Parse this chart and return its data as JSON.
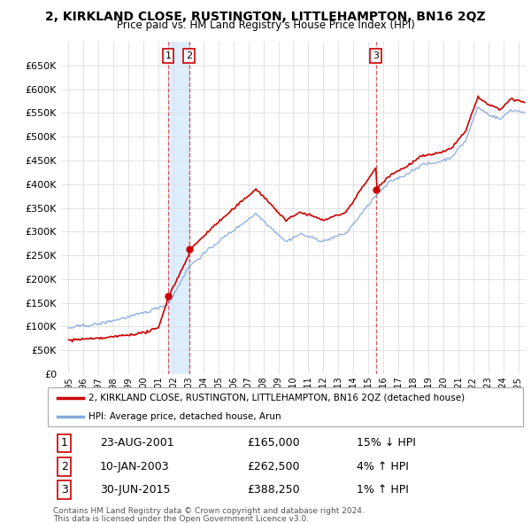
{
  "title": "2, KIRKLAND CLOSE, RUSTINGTON, LITTLEHAMPTON, BN16 2QZ",
  "subtitle": "Price paid vs. HM Land Registry's House Price Index (HPI)",
  "property_label": "2, KIRKLAND CLOSE, RUSTINGTON, LITTLEHAMPTON, BN16 2QZ (detached house)",
  "hpi_label": "HPI: Average price, detached house, Arun",
  "footnote1": "Contains HM Land Registry data © Crown copyright and database right 2024.",
  "footnote2": "This data is licensed under the Open Government Licence v3.0.",
  "transactions": [
    {
      "num": 1,
      "date": "23-AUG-2001",
      "price": "£165,000",
      "note": "15% ↓ HPI",
      "year": 2001.65
    },
    {
      "num": 2,
      "date": "10-JAN-2003",
      "price": "£262,500",
      "note": "4% ↑ HPI",
      "year": 2003.04
    },
    {
      "num": 3,
      "date": "30-JUN-2015",
      "price": "£388,250",
      "note": "1% ↑ HPI",
      "year": 2015.5
    }
  ],
  "transaction_values": [
    165000,
    262500,
    388250
  ],
  "ylim": [
    0,
    700000
  ],
  "yticks": [
    0,
    50000,
    100000,
    150000,
    200000,
    250000,
    300000,
    350000,
    400000,
    450000,
    500000,
    550000,
    600000,
    650000
  ],
  "xlim_start": 1994.5,
  "xlim_end": 2025.5,
  "property_color": "#cc0000",
  "hpi_color": "#88aadd",
  "grid_color": "#dddddd",
  "background_color": "#ffffff",
  "vline_color": "#cc3333",
  "highlight_color": "#ddeeff"
}
